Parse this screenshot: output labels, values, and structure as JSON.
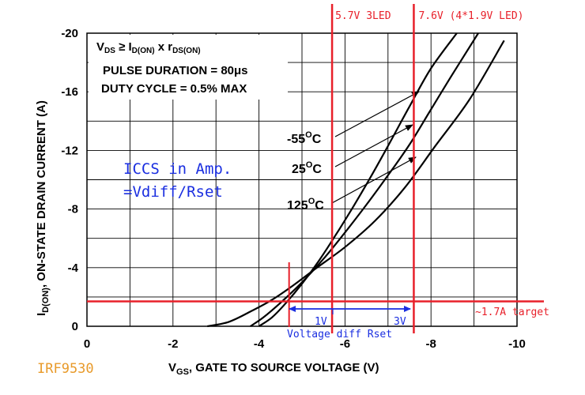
{
  "chart_data": {
    "type": "line",
    "ylabel_main": "I",
    "ylabel_sub": "D(ON)",
    "ylabel_rest": ", ON-STATE DRAIN CURRENT (A)",
    "xlabel_main": "V",
    "xlabel_sub": "GS",
    "xlabel_rest": ", GATE TO SOURCE VOLTAGE (V)",
    "xlim": [
      0,
      -10
    ],
    "ylim": [
      0,
      -20
    ],
    "x_ticks": [
      0,
      -2,
      -4,
      -6,
      -8,
      -10
    ],
    "y_ticks": [
      0,
      -4,
      -8,
      -12,
      -16,
      -20
    ],
    "x_tick_labels": [
      "0",
      "-2",
      "-4",
      "-6",
      "-8",
      "-10"
    ],
    "y_tick_labels": [
      "0",
      "-4",
      "-8",
      "-12",
      "-16",
      "-20"
    ],
    "grid": true,
    "conditions": {
      "line1_a": "V",
      "line1_a_sub": "DS",
      "line1_b": " ≥ I",
      "line1_b_sub": "D(ON)",
      "line1_c": " x r",
      "line1_c_sub": "DS(ON)",
      "line2": "PULSE DURATION = 80μs",
      "line3": "DUTY CYCLE = 0.5% MAX"
    },
    "series": [
      {
        "name": "-55°C",
        "label_base": "-55",
        "label_deg": "O",
        "label_unit": "C",
        "x": [
          -4.0,
          -4.3,
          -4.6,
          -5.0,
          -5.4,
          -5.8,
          -6.2,
          -6.6,
          -7.0,
          -7.5,
          -8.0,
          -8.6
        ],
        "y": [
          0,
          -0.6,
          -1.5,
          -2.9,
          -4.5,
          -6.3,
          -8.2,
          -10.2,
          -12.3,
          -15.0,
          -17.6,
          -20.0
        ]
      },
      {
        "name": "25°C",
        "label_base": "25",
        "label_deg": "O",
        "label_unit": "C",
        "x": [
          -3.8,
          -4.1,
          -4.5,
          -5.0,
          -5.5,
          -6.0,
          -6.5,
          -7.0,
          -7.5,
          -8.0,
          -8.5,
          -9.1
        ],
        "y": [
          0,
          -0.6,
          -1.6,
          -3.0,
          -4.6,
          -6.4,
          -8.3,
          -10.3,
          -12.4,
          -14.8,
          -17.2,
          -20.0
        ]
      },
      {
        "name": "125°C",
        "label_base": "125",
        "label_deg": "O",
        "label_unit": "C",
        "x": [
          -2.8,
          -3.3,
          -3.8,
          -4.3,
          -4.8,
          -5.3,
          -6.0,
          -6.7,
          -7.4,
          -8.1,
          -8.9,
          -9.7
        ],
        "y": [
          0,
          -0.3,
          -1.0,
          -1.8,
          -2.8,
          -3.9,
          -5.4,
          -7.2,
          -9.5,
          -12.3,
          -15.5,
          -19.5
        ]
      }
    ],
    "annotations": {
      "vline1_label": "5.7V 3LED",
      "vline1_x": -5.7,
      "vline2_label": "7.6V (4*1.9V LED)",
      "vline2_x": -7.6,
      "hline_label": "~1.7A target",
      "hline_y": -1.7,
      "marker_x": -4.7,
      "iccs_line1": "ICCS in Amp.",
      "iccs_line2": "=Vdiff/Rset",
      "diff_1v": "1V",
      "diff_3v": "3V",
      "diff_caption": "Voltage diff Rset"
    },
    "part_number": "IRF9530",
    "colors": {
      "red": "#e8202a",
      "blue": "#1a2ee0",
      "orange": "#e89a2a",
      "black": "#000000"
    }
  }
}
